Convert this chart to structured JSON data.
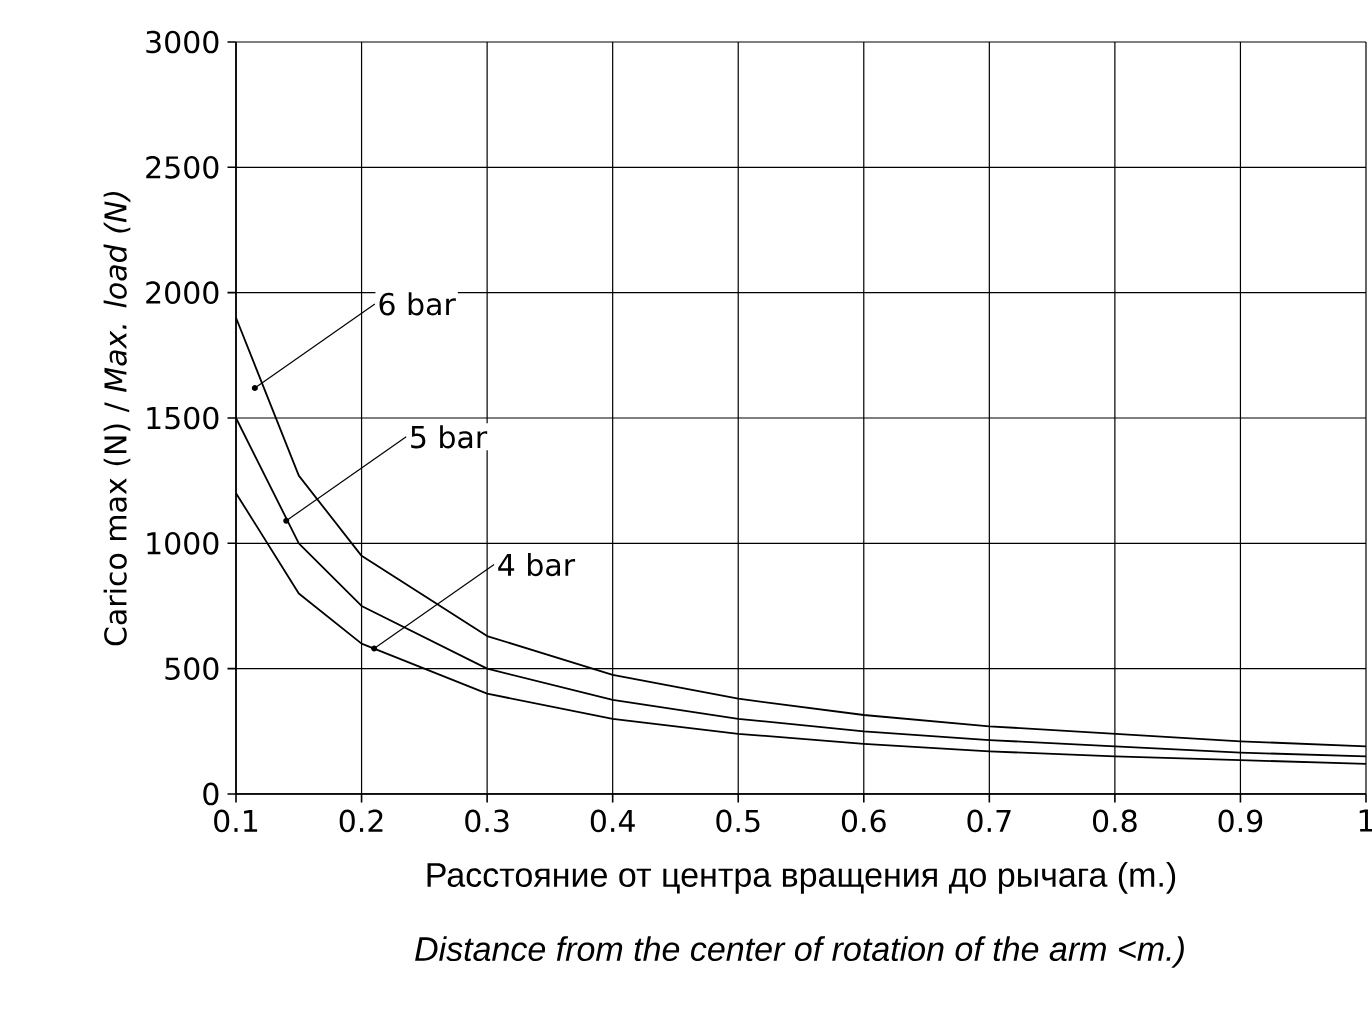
{
  "chart_data": {
    "type": "line",
    "xlabel": "Расстояние от центра вращения до рычага (m.)",
    "ylabel": "Carico max (N) / *Max. load (N)*",
    "x": [
      0.1,
      0.15,
      0.2,
      0.3,
      0.4,
      0.5,
      0.6,
      0.7,
      0.8,
      0.9,
      1.0
    ],
    "series": [
      {
        "color": "#000000",
        "values": [
          1900,
          1270,
          950,
          630,
          475,
          380,
          315,
          270,
          240,
          210,
          190
        ]
      },
      {
        "color": "#000000",
        "values": [
          1500,
          1000,
          750,
          500,
          375,
          300,
          250,
          215,
          190,
          165,
          150
        ]
      },
      {
        "color": "#000000",
        "values": [
          1200,
          800,
          600,
          400,
          300,
          240,
          200,
          170,
          150,
          135,
          120
        ]
      }
    ],
    "xlim": [
      0.1,
      1.0
    ],
    "ylim": [
      0,
      3000
    ],
    "xticks": [
      0.1,
      0.2,
      0.3,
      0.4,
      0.5,
      0.6,
      0.7,
      0.8,
      0.9,
      {
        "value": 1.0,
        "label": "1"
      }
    ],
    "yticks": [
      0,
      500,
      1000,
      1500,
      2000,
      2500,
      3000
    ],
    "grid": true,
    "marker": "none",
    "line_style": "solid",
    "annotations": [
      {
        "text": "6 bar",
        "x": 0.115,
        "y": 1620
      },
      {
        "text": "5 bar",
        "x": 0.14,
        "y": 1090
      },
      {
        "text": "4 bar",
        "x": 0.21,
        "y": 580
      },
      "Distance from the center of rotation of the arm <m.)"
    ]
  }
}
